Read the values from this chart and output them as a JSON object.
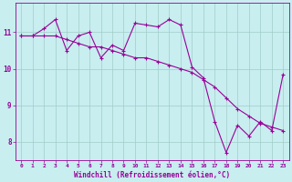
{
  "title": "",
  "xlabel": "Windchill (Refroidissement éolien,°C)",
  "ylabel": "",
  "background_color": "#c8eef0",
  "plot_bg_color": "#c8eef0",
  "line_color": "#990099",
  "marker": "+",
  "markersize": 3,
  "linewidth": 0.8,
  "xlim": [
    -0.5,
    23.5
  ],
  "ylim": [
    7.5,
    11.8
  ],
  "yticks": [
    8,
    9,
    10,
    11
  ],
  "xticks": [
    0,
    1,
    2,
    3,
    4,
    5,
    6,
    7,
    8,
    9,
    10,
    11,
    12,
    13,
    14,
    15,
    16,
    17,
    18,
    19,
    20,
    21,
    22,
    23
  ],
  "grid_color": "#a0ccc8",
  "series1_x": [
    0,
    1,
    2,
    3,
    4,
    5,
    6,
    7,
    8,
    9,
    10,
    11,
    12,
    13,
    14,
    15,
    16,
    17,
    18,
    19,
    20,
    21,
    22,
    23
  ],
  "series1_y": [
    10.9,
    10.9,
    10.9,
    10.9,
    10.8,
    10.7,
    10.6,
    10.6,
    10.5,
    10.4,
    10.3,
    10.3,
    10.2,
    10.1,
    10.0,
    9.9,
    9.7,
    9.5,
    9.2,
    8.9,
    8.7,
    8.5,
    8.4,
    8.3
  ],
  "series2_x": [
    0,
    1,
    2,
    3,
    4,
    5,
    6,
    7,
    8,
    9,
    10,
    11,
    12,
    13,
    14,
    15,
    16,
    17,
    18,
    19,
    20,
    21,
    22,
    23
  ],
  "series2_y": [
    10.9,
    10.9,
    11.1,
    11.35,
    10.5,
    10.9,
    11.0,
    10.3,
    10.65,
    10.5,
    11.25,
    11.2,
    11.15,
    11.35,
    11.2,
    10.05,
    9.75,
    8.55,
    7.7,
    8.45,
    8.15,
    8.55,
    8.3,
    9.85
  ]
}
